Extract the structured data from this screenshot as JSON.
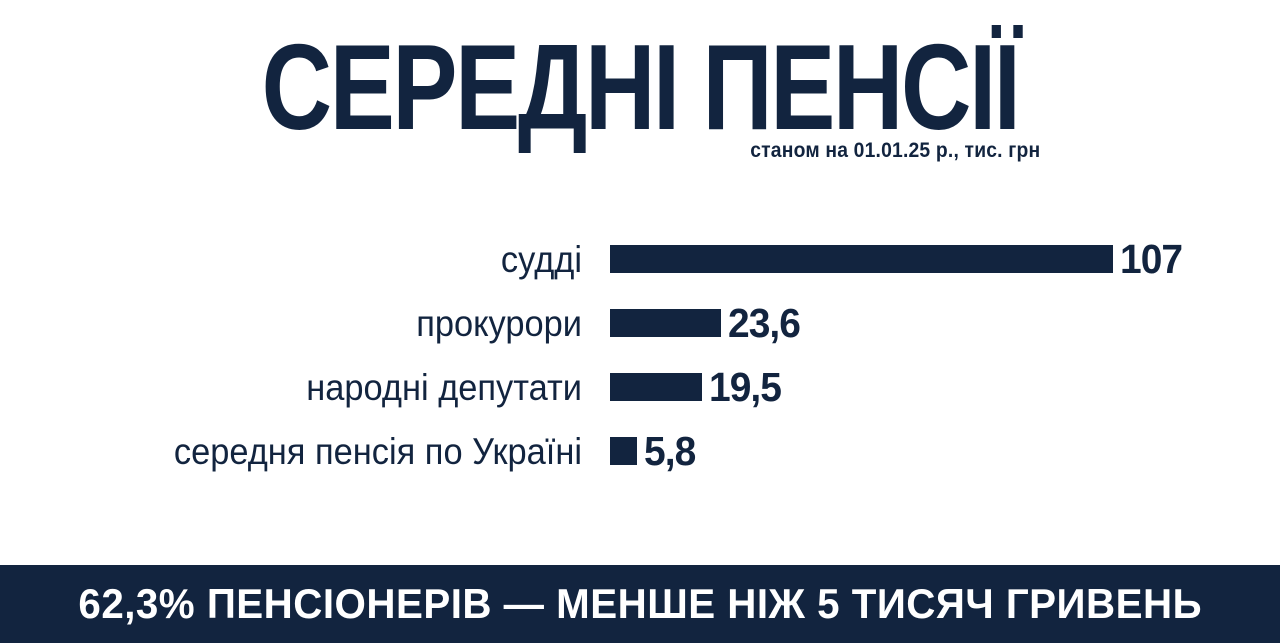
{
  "colors": {
    "navy": "#12243F",
    "background": "#FFFFFF",
    "footer_text": "#FFFFFF"
  },
  "header": {
    "title": "СЕРЕДНІ ПЕНСІЇ",
    "subtitle": "станом на 01.01.25 р., тис. грн"
  },
  "footer": {
    "text": "62,3% ПЕНСІОНЕРІВ — МЕНШЕ НІЖ 5 ТИСЯЧ ГРИВЕНЬ"
  },
  "chart_data": {
    "type": "bar",
    "orientation": "horizontal",
    "title": "СЕРЕДНІ ПЕНСІЇ",
    "subtitle": "станом на 01.01.25 р., тис. грн",
    "unit": "тис. грн",
    "categories": [
      "судді",
      "прокурори",
      "народні депутати",
      "середня пенсія по Україні"
    ],
    "values": [
      107,
      23.6,
      19.5,
      5.8
    ],
    "value_labels": [
      "107",
      "23,6",
      "19,5",
      "5,8"
    ],
    "xlim": [
      0,
      107
    ],
    "bar_color": "#12243F",
    "grid": false,
    "legend": false,
    "annotation": "62,3% ПЕНСІОНЕРІВ — МЕНШЕ НІЖ 5 ТИСЯЧ ГРИВЕНЬ"
  }
}
